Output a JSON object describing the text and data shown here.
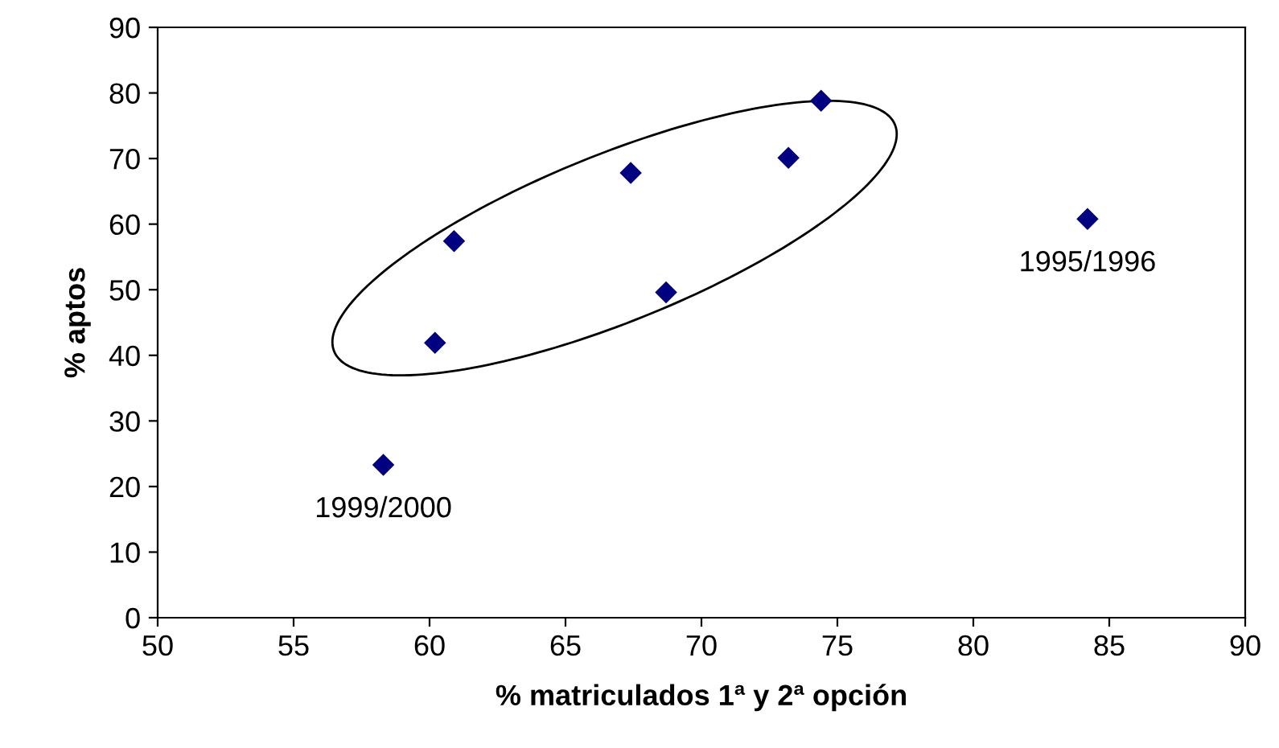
{
  "chart_data": {
    "type": "scatter",
    "xlabel": "% matriculados 1ª y 2ª opción",
    "ylabel": "% aptos",
    "x": [
      58.3,
      60.2,
      60.9,
      67.4,
      68.7,
      73.2,
      74.4,
      84.2
    ],
    "series": [
      {
        "color": "#000080",
        "values": [
          23.3,
          41.9,
          57.4,
          67.8,
          49.6,
          70.1,
          78.8,
          60.8
        ]
      }
    ],
    "xlim": [
      50,
      90
    ],
    "xticks": [
      50,
      55,
      60,
      65,
      70,
      75,
      80,
      85,
      90
    ],
    "ylim": [
      0,
      90
    ],
    "yticks": [
      0,
      10,
      20,
      30,
      40,
      50,
      60,
      70,
      80,
      90
    ],
    "annotations": [
      {
        "text": "1999/2000",
        "x": 58.3,
        "y": 23.3
      },
      {
        "text": "1995/1996",
        "x": 84.2,
        "y": 60.8
      }
    ],
    "marker": "diamond",
    "grid": false,
    "legend": false
  }
}
